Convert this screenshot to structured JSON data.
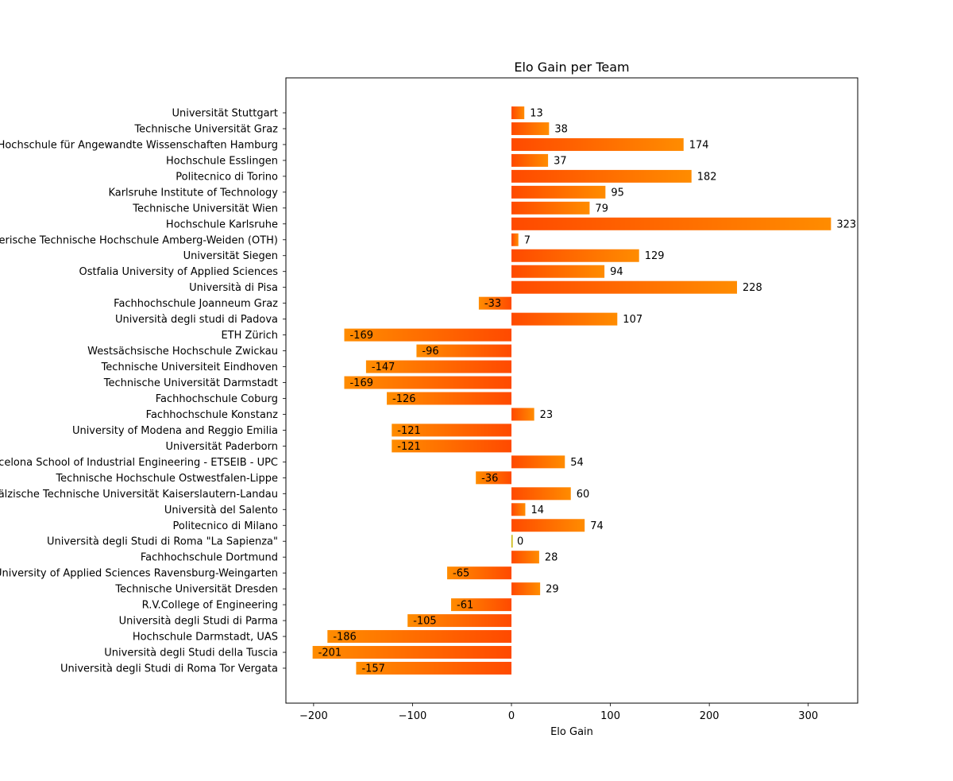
{
  "chart_data": {
    "type": "bar",
    "orientation": "horizontal",
    "title": "Elo Gain per Team",
    "xlabel": "Elo Gain",
    "ylabel": "",
    "xlim": [
      -228,
      350
    ],
    "xticks": [
      -200,
      -100,
      0,
      100,
      200,
      300
    ],
    "xtick_labels": [
      "−200",
      "−100",
      "0",
      "100",
      "200",
      "300"
    ],
    "grid": false,
    "legend": "none",
    "colors": {
      "gradient_dark": "#ff4a00",
      "gradient_light": "#ff8c00",
      "zero_bar": "#c8b400"
    },
    "categories": [
      "Universität Stuttgart",
      "Technische Universität Graz",
      "Hochschule für Angewandte Wissenschaften Hamburg",
      "Hochschule Esslingen",
      "Politecnico di Torino",
      "Karlsruhe Institute of Technology",
      "Technische Universität Wien",
      "Hochschule Karlsruhe",
      "Ostbayerische Technische Hochschule Amberg-Weiden (OTH)",
      "Universität Siegen",
      "Ostfalia University of Applied Sciences",
      "Università di Pisa",
      "Fachhochschule Joanneum Graz",
      "Università degli studi di Padova",
      "ETH Zürich",
      "Westsächsische Hochschule Zwickau",
      "Technische Universiteit Eindhoven",
      "Technische Universität Darmstadt",
      "Fachhochschule Coburg",
      "Fachhochschule Konstanz",
      "University of Modena and Reggio Emilia",
      "Universität Paderborn",
      "Barcelona School of Industrial Engineering - ETSEIB - UPC",
      "Technische Hochschule Ostwestfalen-Lippe",
      "Rheinland-Pfälzische Technische Universität Kaiserslautern-Landau",
      "Università del Salento",
      "Politecnico di Milano",
      "Università degli Studi di Roma \"La Sapienza\"",
      "Fachhochschule Dortmund",
      "University of Applied Sciences Ravensburg-Weingarten",
      "Technische Universität Dresden",
      "R.V.College of Engineering",
      "Università degli Studi di Parma",
      "Hochschule Darmstadt, UAS",
      "Università degli Studi della Tuscia",
      "Università degli Studi di Roma Tor Vergata"
    ],
    "values": [
      13,
      38,
      174,
      37,
      182,
      95,
      79,
      323,
      7,
      129,
      94,
      228,
      -33,
      107,
      -169,
      -96,
      -147,
      -169,
      -126,
      23,
      -121,
      -121,
      54,
      -36,
      60,
      14,
      74,
      0,
      28,
      -65,
      29,
      -61,
      -105,
      -186,
      -201,
      -157
    ]
  }
}
